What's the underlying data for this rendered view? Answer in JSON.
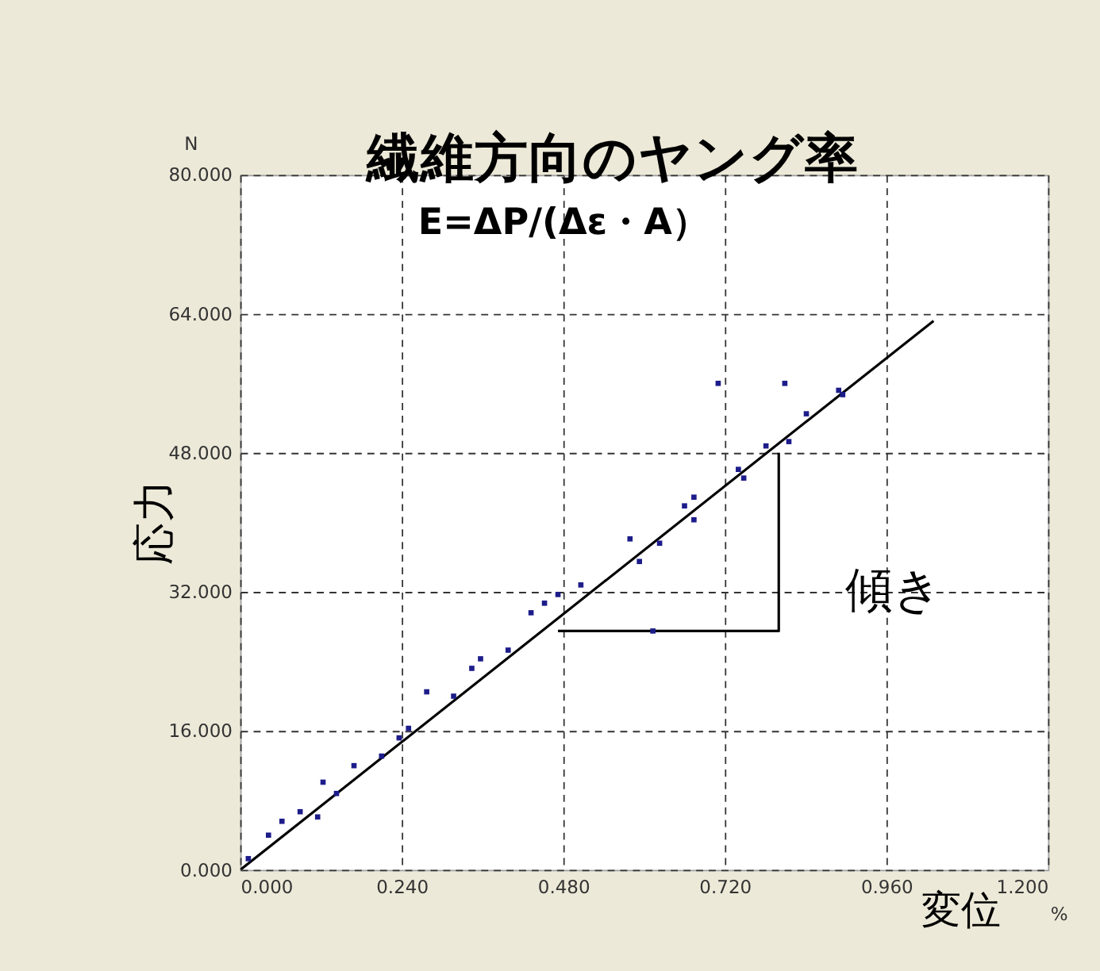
{
  "chart_data": {
    "type": "scatter",
    "title": "繊維方向のヤング率",
    "subtitle": "E=ΔP/(Δε・A）",
    "xlabel": "変位",
    "ylabel": "応力",
    "annotations": [
      "N",
      "%",
      "傾き"
    ],
    "xlim": [
      0,
      1.2
    ],
    "ylim": [
      0,
      80
    ],
    "xticks": [
      {
        "value": 0,
        "label": "0.000"
      },
      {
        "value": 0.24,
        "label": "0.240"
      },
      {
        "value": 0.48,
        "label": "0.480"
      },
      {
        "value": 0.72,
        "label": "0.720"
      },
      {
        "value": 0.96,
        "label": "0.960"
      },
      {
        "value": 1.2,
        "label": "1.200"
      }
    ],
    "yticks": [
      {
        "value": 0,
        "label": "0.000"
      },
      {
        "value": 16,
        "label": "16.000"
      },
      {
        "value": 32,
        "label": "32.000"
      },
      {
        "value": 48,
        "label": "48.000"
      },
      {
        "value": 64,
        "label": "64.000"
      },
      {
        "value": 80,
        "label": "80.000"
      }
    ],
    "grid": true,
    "line_style": "solid",
    "series": [
      {
        "marker": "square",
        "color": "#1c1c8a",
        "x": [
          0.012,
          0.042,
          0.062,
          0.089,
          0.115,
          0.123,
          0.143,
          0.169,
          0.21,
          0.236,
          0.25,
          0.277,
          0.317,
          0.344,
          0.357,
          0.398,
          0.432,
          0.452,
          0.472,
          0.506,
          0.579,
          0.593,
          0.613,
          0.623,
          0.66,
          0.674,
          0.674,
          0.71,
          0.74,
          0.748,
          0.781,
          0.809,
          0.815,
          0.841,
          0.889,
          0.895
        ],
        "values": [
          1.3,
          4.0,
          5.6,
          6.7,
          6.1,
          10.1,
          8.8,
          12.0,
          13.1,
          15.2,
          16.3,
          20.5,
          20.0,
          23.2,
          24.3,
          25.3,
          29.6,
          30.7,
          31.7,
          32.8,
          38.1,
          35.5,
          27.5,
          37.6,
          41.9,
          42.9,
          40.3,
          56,
          46.1,
          45.1,
          48.8,
          56,
          49.3,
          52.5,
          55.2,
          54.7
        ]
      },
      {
        "type": "line",
        "color": "#000000",
        "x": [
          0,
          1.03
        ],
        "values": [
          0,
          63.2
        ]
      },
      {
        "type": "line",
        "color": "#000000",
        "x": [
          0.472,
          0.8,
          0.8
        ],
        "values": [
          27.5,
          27.5,
          48
        ]
      }
    ]
  }
}
